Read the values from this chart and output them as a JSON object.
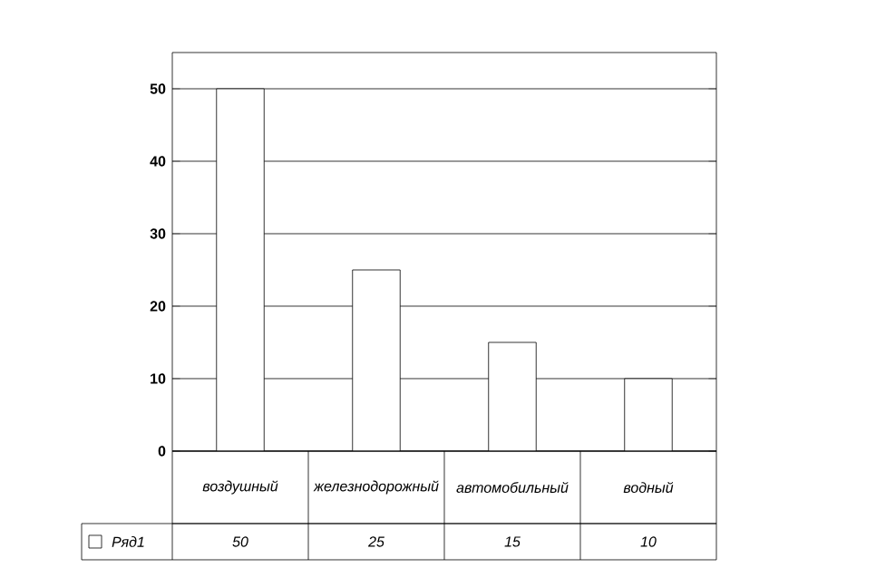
{
  "chart_data": {
    "type": "bar",
    "categories": [
      "воздушный",
      "железнодорожный",
      "автомобильный",
      "водный"
    ],
    "series": [
      {
        "name": "Ряд1",
        "color": "#ffffff",
        "values": [
          50,
          25,
          15,
          10
        ]
      }
    ],
    "ylim": [
      0,
      55
    ],
    "yticks": [
      0,
      10,
      20,
      30,
      40,
      50
    ],
    "grid": "y",
    "data_labels": true,
    "legend": "bottom"
  }
}
